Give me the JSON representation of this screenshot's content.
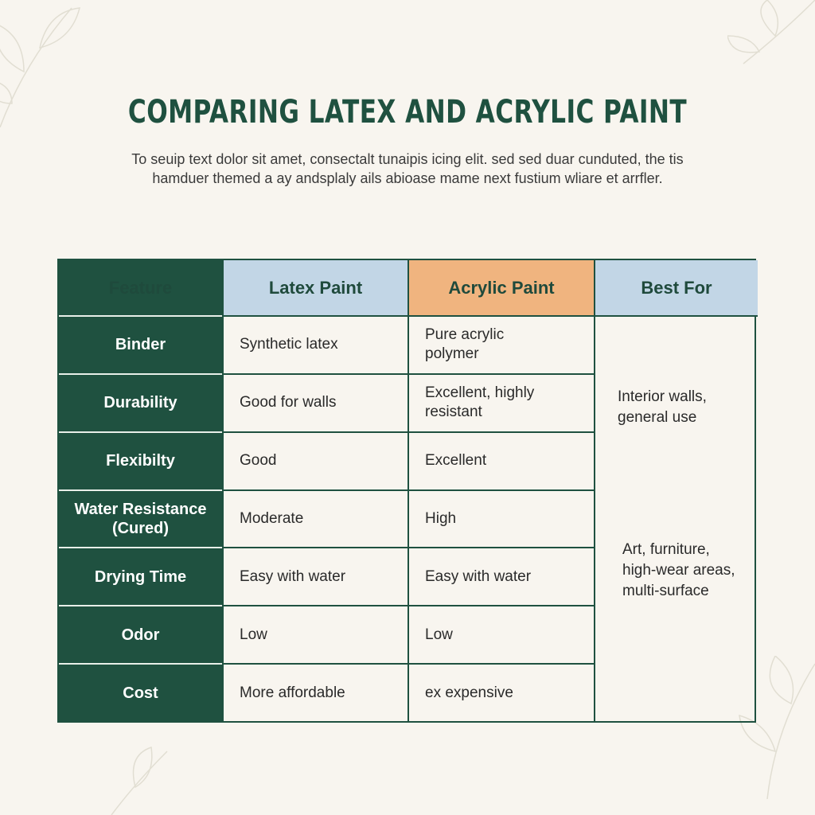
{
  "title": "COMPARING LATEX AND ACRYLIC PAINT",
  "subtitle": "To seuip text dolor sit amet, consectalt tunaipis icing elit. sed sed duar cunduted, the tis hamduer themed a ay andsplaly ails abioase mame next fustium wliare et arrfler.",
  "colors": {
    "primary": "#1f5140",
    "latex_header": "#c2d6e6",
    "acrylic_header": "#f0b47f",
    "background": "#f8f5ef"
  },
  "table": {
    "headers": [
      "Feature",
      "Latex Paint",
      "Acrylic Paint",
      "Best For"
    ],
    "rows": [
      {
        "feature": "Binder",
        "latex": "Synthetic latex",
        "acrylic": "Pure acrylic polymer"
      },
      {
        "feature": "Durability",
        "latex": "Good for walls",
        "acrylic": "Excellent, highly resistant"
      },
      {
        "feature": "Flexibilty",
        "latex": "Good",
        "acrylic": "Excellent"
      },
      {
        "feature": "Water Resistance (Cured)",
        "latex": "Moderate",
        "acrylic": "High"
      },
      {
        "feature": "Drying Time",
        "latex": "Easy with water",
        "acrylic": "Easy with water"
      },
      {
        "feature": "Odor",
        "latex": "Low",
        "acrylic": "Low"
      },
      {
        "feature": "Cost",
        "latex": "More affordable",
        "acrylic": "ex expensive"
      }
    ],
    "best_for": [
      "Interior walls, general use",
      "Art, furniture, high-wear areas, multi-surface"
    ]
  }
}
